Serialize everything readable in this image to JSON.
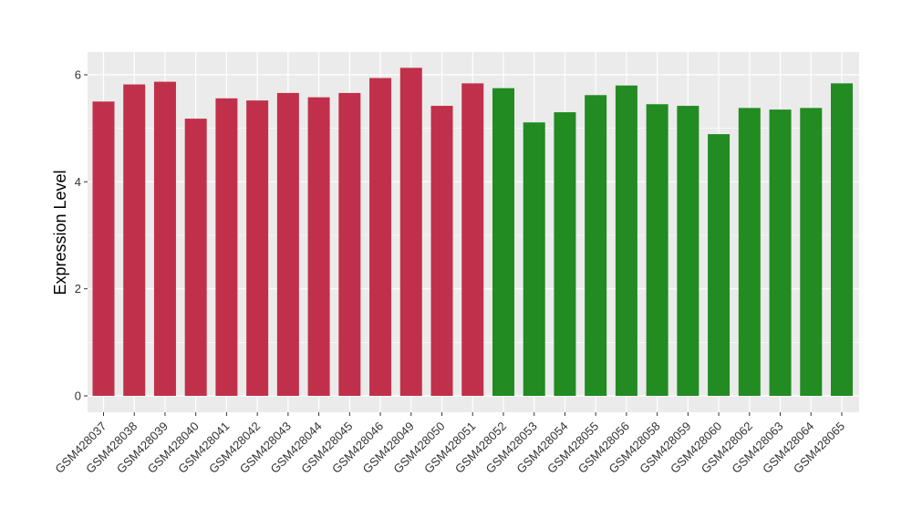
{
  "chart_data": {
    "type": "bar",
    "title": "",
    "xlabel": "",
    "ylabel": "Expression Level",
    "ylim": [
      0,
      6.4
    ],
    "yticks": [
      0,
      2,
      4,
      6
    ],
    "ytick_labels": [
      "0",
      "2",
      "4",
      "6"
    ],
    "grid": true,
    "legend": "none",
    "categories": [
      "GSM428037",
      "GSM428038",
      "GSM428039",
      "GSM428040",
      "GSM428041",
      "GSM428042",
      "GSM428043",
      "GSM428044",
      "GSM428045",
      "GSM428046",
      "GSM428049",
      "GSM428050",
      "GSM428051",
      "GSM428052",
      "GSM428053",
      "GSM428054",
      "GSM428055",
      "GSM428056",
      "GSM428058",
      "GSM428059",
      "GSM428060",
      "GSM428062",
      "GSM428063",
      "GSM428064",
      "GSM428065"
    ],
    "values": [
      5.5,
      5.82,
      5.87,
      5.18,
      5.56,
      5.52,
      5.66,
      5.58,
      5.66,
      5.94,
      6.13,
      5.42,
      5.84,
      5.75,
      5.11,
      5.3,
      5.62,
      5.8,
      5.45,
      5.42,
      4.89,
      5.38,
      5.35,
      5.38,
      5.84
    ],
    "bar_colors": [
      "#c1304a",
      "#c1304a",
      "#c1304a",
      "#c1304a",
      "#c1304a",
      "#c1304a",
      "#c1304a",
      "#c1304a",
      "#c1304a",
      "#c1304a",
      "#c1304a",
      "#c1304a",
      "#c1304a",
      "#228b22",
      "#228b22",
      "#228b22",
      "#228b22",
      "#228b22",
      "#228b22",
      "#228b22",
      "#228b22",
      "#228b22",
      "#228b22",
      "#228b22",
      "#228b22"
    ],
    "panel_background": "#ebebeb",
    "grid_color": "#ffffff"
  }
}
